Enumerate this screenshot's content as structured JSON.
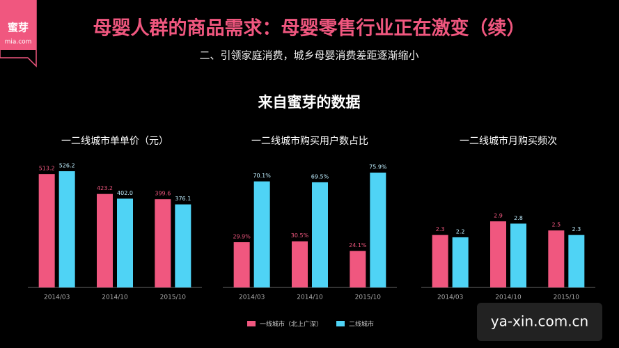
{
  "header": {
    "logo": "蜜芽",
    "logo_sub": "mia.com",
    "title": "母婴人群的商品需求：母婴零售行业正在激变（续）",
    "subtitle": "二、引领家庭消费，城乡母婴消费差距逐渐缩小",
    "section": "来自蜜芽的数据"
  },
  "legend": [
    {
      "name": "一线城市（北上广深）",
      "color": "#f0577f"
    },
    {
      "name": "二线城市",
      "color": "#4fd3f5"
    }
  ],
  "chart_data": [
    {
      "type": "bar",
      "title": "一二线城市单单价（元）",
      "categories": [
        "2014/03",
        "2014/10",
        "2015/10"
      ],
      "series": [
        {
          "values": [
            513.2,
            423.2,
            399.6
          ]
        },
        {
          "values": [
            526.2,
            402.0,
            376.1
          ],
          "value_labels": [
            "526.2",
            "402.0",
            "376.1"
          ]
        }
      ]
    },
    {
      "type": "bar",
      "title": "一二线城市购买用户数占比",
      "categories": [
        "2014/03",
        "2014/10",
        "2015/10"
      ],
      "series": [
        {
          "values": [
            29.9,
            30.5,
            24.1
          ],
          "value_labels": [
            "29.9%",
            "30.5%",
            "24.1%"
          ]
        },
        {
          "values": [
            70.1,
            69.5,
            75.9
          ],
          "value_labels": [
            "70.1%",
            "69.5%",
            "75.9%"
          ]
        }
      ]
    },
    {
      "type": "bar",
      "title": "一二线城市月购买频次",
      "categories": [
        "2014/03",
        "2014/10",
        "2015/10"
      ],
      "series": [
        {
          "values": [
            2.3,
            2.9,
            2.5
          ]
        },
        {
          "values": [
            2.2,
            2.8,
            2.3
          ]
        }
      ]
    }
  ],
  "watermark": "ya-xin.com.cn"
}
